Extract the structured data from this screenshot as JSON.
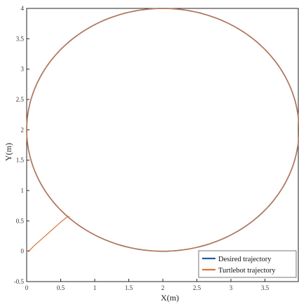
{
  "chart_data": {
    "type": "line",
    "xlabel": "X(m)",
    "ylabel": "Y(m)",
    "xlim": [
      0,
      4
    ],
    "ylim": [
      -0.5,
      4
    ],
    "xticks": [
      0,
      0.5,
      1,
      1.5,
      2,
      2.5,
      3,
      3.5
    ],
    "xtick_labels": [
      "0",
      "0.5",
      "1",
      "1.5",
      "2",
      "2.5",
      "3",
      "3.5"
    ],
    "yticks": [
      -0.5,
      0,
      0.5,
      1,
      1.5,
      2,
      2.5,
      3,
      3.5,
      4
    ],
    "ytick_labels": [
      "-0.5",
      "0",
      "0.5",
      "1",
      "1.5",
      "2",
      "2.5",
      "3",
      "3.5",
      "4"
    ],
    "grid": false,
    "legend_position": "bottom-right",
    "series": [
      {
        "name": "Desired trajectory",
        "color": "#1f5f9e",
        "shape": "circle",
        "center": [
          2,
          2
        ],
        "radius": 2
      },
      {
        "name": "Turtlebot trajectory",
        "color": "#d9743a",
        "shape": "path",
        "x": [
          0,
          0.05,
          0.1,
          0.2,
          0.3,
          0.4,
          0.5,
          0.6,
          0.62
        ],
        "y": [
          0,
          0.02,
          0.08,
          0.18,
          0.28,
          0.38,
          0.48,
          0.57,
          0.57
        ],
        "then_follows_circle": true
      }
    ]
  }
}
